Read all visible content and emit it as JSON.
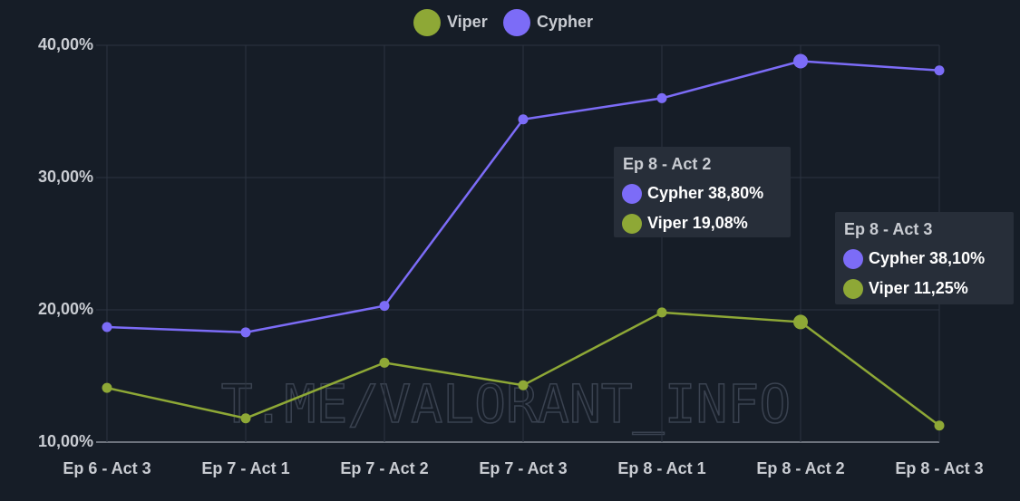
{
  "chart_data": {
    "type": "line",
    "categories": [
      "Ep 6 - Act 3",
      "Ep 7 - Act 1",
      "Ep 7 - Act 2",
      "Ep 7 - Act 3",
      "Ep 8 - Act 1",
      "Ep 8 - Act 2",
      "Ep 8 - Act 3"
    ],
    "series": [
      {
        "name": "Viper",
        "color": "#8ea836",
        "values": [
          14.1,
          11.8,
          16.0,
          14.3,
          19.8,
          19.08,
          11.25
        ]
      },
      {
        "name": "Cypher",
        "color": "#7c6cf7",
        "values": [
          18.7,
          18.3,
          20.3,
          34.4,
          36.0,
          38.8,
          38.1
        ]
      }
    ],
    "ylim": [
      10,
      40
    ],
    "yticks": [
      {
        "value": 10,
        "label": "10,00%"
      },
      {
        "value": 20,
        "label": "20,00%"
      },
      {
        "value": 30,
        "label": "30,00%"
      },
      {
        "value": 40,
        "label": "40,00%"
      }
    ],
    "grid": true,
    "legend": "top",
    "tooltips": [
      {
        "title": "Ep 8 - Act 2",
        "value_labels": [
          "19,08%",
          "38,80%"
        ]
      },
      {
        "title": "Ep 8 - Act 3",
        "value_labels": [
          "11,25%",
          "38,10%"
        ]
      }
    ],
    "watermark": "T.ME/VALORANT_INFO"
  }
}
